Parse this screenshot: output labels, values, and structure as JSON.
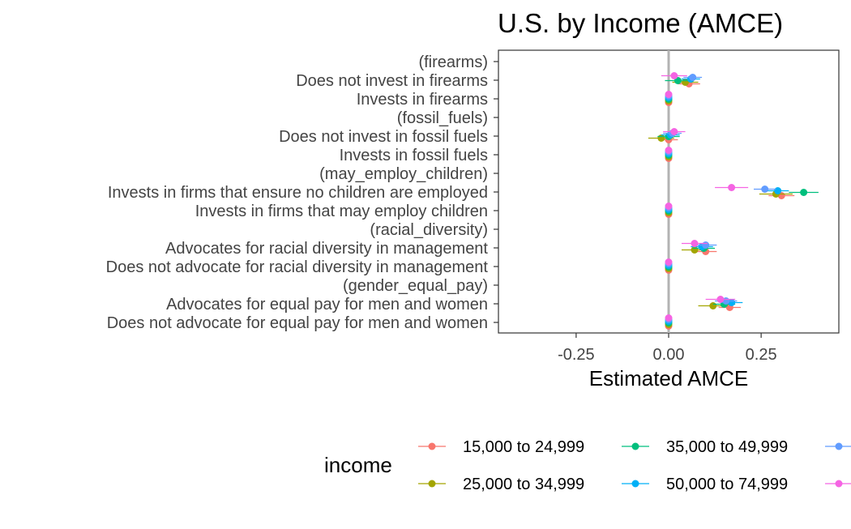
{
  "chart_data": {
    "type": "scatter",
    "title": "U.S. by Income (AMCE)",
    "xlabel": "Estimated AMCE",
    "ylabel": "",
    "xlim": [
      -0.46,
      0.46
    ],
    "xticks": [
      -0.25,
      0.0,
      0.25
    ],
    "xtick_labels": [
      "-0.25",
      "0.00",
      "0.25"
    ],
    "reference_line": 0,
    "grid": false,
    "legend_title": "income",
    "legend_position": "bottom",
    "categories": [
      "(firearms)",
      "Does not invest in firearms",
      "Invests in firearms",
      "(fossil_fuels)",
      "Does not invest in fossil fuels",
      "Invests in fossil fuels",
      "(may_employ_children)",
      "Invests in firms that ensure no children are employed",
      "Invests in firms that may employ children",
      "(racial_diversity)",
      "Advocates for racial diversity in management",
      "Does not advocate for racial diversity in management",
      "(gender_equal_pay)",
      "Advocates for equal pay for men and women",
      "Does not advocate for equal pay for men and women"
    ],
    "series": [
      {
        "name": "15,000 to 24,999",
        "color": "#F8766D",
        "estimates": [
          null,
          0.055,
          0.0,
          null,
          0.0,
          0.0,
          null,
          0.305,
          0.0,
          null,
          0.1,
          0.0,
          null,
          0.165,
          0.0
        ],
        "ci_low": [
          null,
          0.025,
          0.0,
          null,
          -0.025,
          0.0,
          null,
          0.27,
          0.0,
          null,
          0.07,
          0.0,
          null,
          0.135,
          0.0
        ],
        "ci_high": [
          null,
          0.085,
          0.0,
          null,
          0.025,
          0.0,
          null,
          0.34,
          0.0,
          null,
          0.13,
          0.0,
          null,
          0.195,
          0.0
        ]
      },
      {
        "name": "25,000 to 34,999",
        "color": "#A3A500",
        "estimates": [
          null,
          0.045,
          0.0,
          null,
          -0.02,
          0.0,
          null,
          0.29,
          0.0,
          null,
          0.07,
          0.0,
          null,
          0.12,
          0.0
        ],
        "ci_low": [
          null,
          0.01,
          0.0,
          null,
          -0.055,
          0.0,
          null,
          0.245,
          0.0,
          null,
          0.035,
          0.0,
          null,
          0.08,
          0.0
        ],
        "ci_high": [
          null,
          0.08,
          0.0,
          null,
          0.015,
          0.0,
          null,
          0.335,
          0.0,
          null,
          0.105,
          0.0,
          null,
          0.16,
          0.0
        ]
      },
      {
        "name": "35,000 to 49,999",
        "color": "#00BF7D",
        "estimates": [
          null,
          0.025,
          0.0,
          null,
          0.0,
          0.0,
          null,
          0.365,
          0.0,
          null,
          0.095,
          0.0,
          null,
          0.15,
          0.0
        ],
        "ci_low": [
          null,
          -0.01,
          0.0,
          null,
          -0.03,
          0.0,
          null,
          0.325,
          0.0,
          null,
          0.065,
          0.0,
          null,
          0.12,
          0.0
        ],
        "ci_high": [
          null,
          0.06,
          0.0,
          null,
          0.03,
          0.0,
          null,
          0.405,
          0.0,
          null,
          0.125,
          0.0,
          null,
          0.18,
          0.0
        ]
      },
      {
        "name": "50,000 to 74,999",
        "color": "#00B0F6",
        "estimates": [
          null,
          0.06,
          0.0,
          null,
          0.005,
          0.0,
          null,
          0.295,
          0.0,
          null,
          0.09,
          0.0,
          null,
          0.17,
          0.0
        ],
        "ci_low": [
          null,
          0.035,
          0.0,
          null,
          -0.02,
          0.0,
          null,
          0.265,
          0.0,
          null,
          0.06,
          0.0,
          null,
          0.14,
          0.0
        ],
        "ci_high": [
          null,
          0.085,
          0.0,
          null,
          0.03,
          0.0,
          null,
          0.325,
          0.0,
          null,
          0.12,
          0.0,
          null,
          0.2,
          0.0
        ]
      },
      {
        "name": "",
        "color": "#619CFF",
        "estimates": [
          null,
          0.065,
          0.0,
          null,
          0.01,
          0.0,
          null,
          0.26,
          0.0,
          null,
          0.1,
          0.0,
          null,
          0.155,
          0.0
        ],
        "ci_low": [
          null,
          0.04,
          0.0,
          null,
          -0.015,
          0.0,
          null,
          0.23,
          0.0,
          null,
          0.07,
          0.0,
          null,
          0.125,
          0.0
        ],
        "ci_high": [
          null,
          0.09,
          0.0,
          null,
          0.035,
          0.0,
          null,
          0.29,
          0.0,
          null,
          0.13,
          0.0,
          null,
          0.185,
          0.0
        ]
      },
      {
        "name": "",
        "color": "#F564E3",
        "estimates": [
          null,
          0.015,
          0.0,
          null,
          0.015,
          0.0,
          null,
          0.17,
          0.0,
          null,
          0.07,
          0.0,
          null,
          0.14,
          0.0
        ],
        "ci_low": [
          null,
          -0.02,
          0.0,
          null,
          -0.015,
          0.0,
          null,
          0.125,
          0.0,
          null,
          0.035,
          0.0,
          null,
          0.1,
          0.0
        ],
        "ci_high": [
          null,
          0.05,
          0.0,
          null,
          0.045,
          0.0,
          null,
          0.215,
          0.0,
          null,
          0.105,
          0.0,
          null,
          0.18,
          0.0
        ]
      }
    ]
  }
}
